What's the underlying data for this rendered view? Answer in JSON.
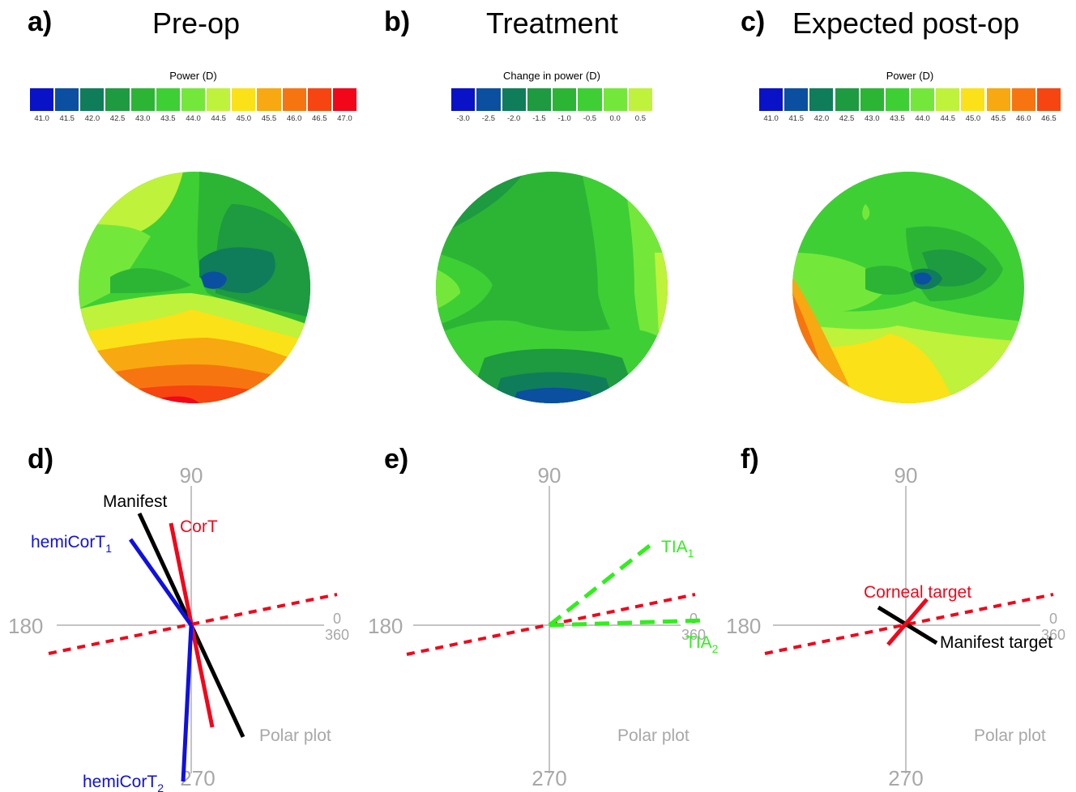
{
  "panels": {
    "a": {
      "letter": "a)",
      "title": "Pre-op",
      "colorbar_title": "Power (D)",
      "ticks": [
        "41.0",
        "41.5",
        "42.0",
        "42.5",
        "43.0",
        "43.5",
        "44.0",
        "44.5",
        "45.0",
        "45.5",
        "46.0",
        "46.5",
        "47.0"
      ],
      "colors": [
        "#0a12c8",
        "#0b4fa0",
        "#0f7d5a",
        "#1e9a40",
        "#2cb535",
        "#3ecf35",
        "#74e83a",
        "#bff23a",
        "#fbe117",
        "#f8a810",
        "#f77510",
        "#f64510",
        "#f2061a"
      ]
    },
    "b": {
      "letter": "b)",
      "title": "Treatment",
      "colorbar_title": "Change in power (D)",
      "ticks": [
        "-3.0",
        "-2.5",
        "-2.0",
        "-1.5",
        "-1.0",
        "-0.5",
        "0.0",
        "0.5"
      ],
      "colors": [
        "#0a12c8",
        "#0b4fa0",
        "#0f7d5a",
        "#1e9a40",
        "#2cb535",
        "#3ecf35",
        "#74e83a",
        "#bff23a"
      ]
    },
    "c": {
      "letter": "c)",
      "title": "Expected post-op",
      "colorbar_title": "Power (D)",
      "ticks": [
        "41.0",
        "41.5",
        "42.0",
        "42.5",
        "43.0",
        "43.5",
        "44.0",
        "44.5",
        "45.0",
        "45.5",
        "46.0",
        "46.5"
      ],
      "colors": [
        "#0a12c8",
        "#0b4fa0",
        "#0f7d5a",
        "#1e9a40",
        "#2cb535",
        "#3ecf35",
        "#74e83a",
        "#bff23a",
        "#fbe117",
        "#f8a810",
        "#f77510",
        "#f64510"
      ]
    },
    "d": {
      "letter": "d)"
    },
    "e": {
      "letter": "e)"
    },
    "f": {
      "letter": "f)"
    }
  },
  "polar": {
    "label_90": "90",
    "label_180": "180",
    "label_0": "0",
    "label_360": "360",
    "label_270": "270",
    "caption": "Polar plot",
    "d_labels": {
      "manifest": "Manifest",
      "cort": "CorT",
      "hemi1": "hemiCorT",
      "hemi1_sub": "1",
      "hemi2": "hemiCorT",
      "hemi2_sub": "2"
    },
    "e_labels": {
      "tia1": "TIA",
      "tia1_sub": "1",
      "tia2": "TIA",
      "tia2_sub": "2"
    },
    "f_labels": {
      "corneal": "Corneal target",
      "manifest": "Manifest target"
    }
  },
  "colors": {
    "red": "#f2061a",
    "black": "#000000",
    "blue": "#1010e0",
    "green": "#2ef01a",
    "axis": "#b0b0b0",
    "axis_text": "#a8a8a8"
  }
}
